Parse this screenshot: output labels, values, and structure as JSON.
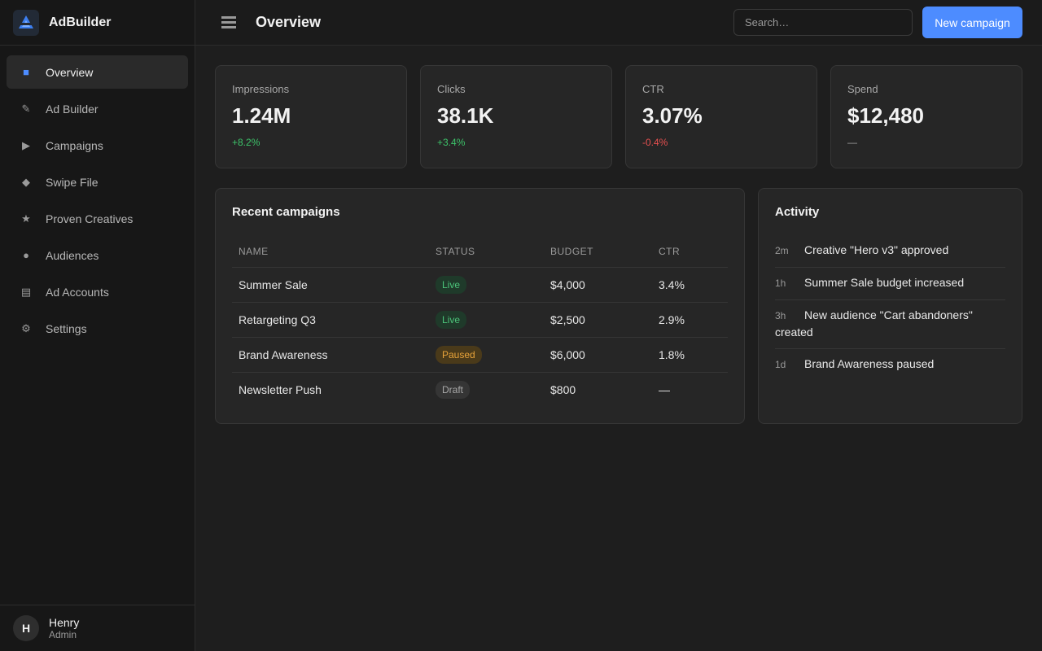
{
  "app": {
    "name": "AdBuilder"
  },
  "sidebar": {
    "items": [
      {
        "label": "Overview",
        "icon": "grid-icon",
        "active": true
      },
      {
        "label": "Ad Builder",
        "icon": "pencil-icon"
      },
      {
        "label": "Campaigns",
        "icon": "play-icon"
      },
      {
        "label": "Swipe File",
        "icon": "diamond-icon"
      },
      {
        "label": "Proven Creatives",
        "icon": "star-icon"
      },
      {
        "label": "Audiences",
        "icon": "dot-icon"
      },
      {
        "label": "Ad Accounts",
        "icon": "lines-icon"
      },
      {
        "label": "Settings",
        "icon": "gear-icon"
      }
    ]
  },
  "user": {
    "initial": "H",
    "name": "Henry",
    "role": "Admin"
  },
  "header": {
    "title": "Overview",
    "search_placeholder": "Search…",
    "new_button": "New campaign"
  },
  "stats": [
    {
      "label": "Impressions",
      "value": "1.24M",
      "delta": "+8.2%",
      "trend": "up"
    },
    {
      "label": "Clicks",
      "value": "38.1K",
      "delta": "+3.4%",
      "trend": "up"
    },
    {
      "label": "CTR",
      "value": "3.07%",
      "delta": "-0.4%",
      "trend": "down"
    },
    {
      "label": "Spend",
      "value": "$12,480",
      "delta": "—",
      "trend": "flat"
    }
  ],
  "campaigns": {
    "title": "Recent campaigns",
    "columns": [
      "NAME",
      "STATUS",
      "BUDGET",
      "CTR"
    ],
    "rows": [
      {
        "name": "Summer Sale",
        "status": "Live",
        "budget": "$4,000",
        "ctr": "3.4%"
      },
      {
        "name": "Retargeting Q3",
        "status": "Live",
        "budget": "$2,500",
        "ctr": "2.9%"
      },
      {
        "name": "Brand Awareness",
        "status": "Paused",
        "budget": "$6,000",
        "ctr": "1.8%"
      },
      {
        "name": "Newsletter Push",
        "status": "Draft",
        "budget": "$800",
        "ctr": "—"
      }
    ]
  },
  "activity": {
    "title": "Activity",
    "items": [
      {
        "time": "2m",
        "text": "Creative \"Hero v3\" approved"
      },
      {
        "time": "1h",
        "text": "Summer Sale budget increased"
      },
      {
        "time": "3h",
        "text": "New audience \"Cart abandoners\" created"
      },
      {
        "time": "1d",
        "text": "Brand Awareness paused"
      }
    ]
  },
  "colors": {
    "accent": "#4d8cff",
    "positive": "#3dc46a",
    "negative": "#e85050",
    "warning": "#e8a33a"
  }
}
